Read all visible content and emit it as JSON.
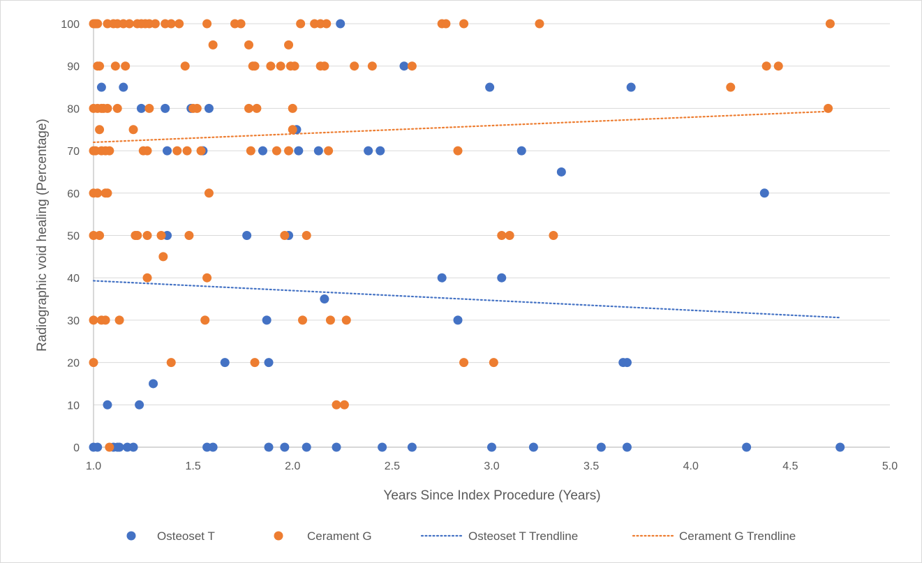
{
  "chart_data": {
    "type": "scatter",
    "xlabel": "Years Since Index Procedure (Years)",
    "ylabel": "Radiographic void healing (Percentage)",
    "xlim": [
      1.0,
      5.0
    ],
    "ylim": [
      0,
      100
    ],
    "x_ticks": [
      "1.0",
      "1.5",
      "2.0",
      "2.5",
      "3.0",
      "3.5",
      "4.0",
      "4.5",
      "5.0"
    ],
    "y_ticks": [
      "0",
      "10",
      "20",
      "30",
      "40",
      "50",
      "60",
      "70",
      "80",
      "90",
      "100"
    ],
    "grid": "horizontal",
    "legend_position": "bottom",
    "colors": {
      "osteoset": "#4472c4",
      "cerament": "#ed7d31",
      "axis": "#bfbfbf",
      "grid": "#d9d9d9"
    },
    "series": [
      {
        "name": "Osteoset T",
        "color": "#4472c4",
        "points": [
          [
            1.0,
            0
          ],
          [
            1.02,
            0
          ],
          [
            1.01,
            100
          ],
          [
            1.04,
            85
          ],
          [
            1.07,
            10
          ],
          [
            1.1,
            0
          ],
          [
            1.12,
            0
          ],
          [
            1.13,
            0
          ],
          [
            1.15,
            85
          ],
          [
            1.17,
            0
          ],
          [
            1.2,
            0
          ],
          [
            1.23,
            10
          ],
          [
            1.24,
            80
          ],
          [
            1.3,
            15
          ],
          [
            1.36,
            80
          ],
          [
            1.37,
            70
          ],
          [
            1.37,
            50
          ],
          [
            1.49,
            80
          ],
          [
            1.55,
            70
          ],
          [
            1.57,
            0
          ],
          [
            1.58,
            80
          ],
          [
            1.6,
            0
          ],
          [
            1.66,
            20
          ],
          [
            1.77,
            50
          ],
          [
            1.85,
            70
          ],
          [
            1.87,
            30
          ],
          [
            1.88,
            20
          ],
          [
            1.88,
            0
          ],
          [
            1.96,
            0
          ],
          [
            1.98,
            50
          ],
          [
            2.02,
            75
          ],
          [
            2.03,
            70
          ],
          [
            2.07,
            0
          ],
          [
            2.13,
            70
          ],
          [
            2.16,
            35
          ],
          [
            2.22,
            0
          ],
          [
            2.24,
            100
          ],
          [
            2.38,
            70
          ],
          [
            2.44,
            70
          ],
          [
            2.45,
            0
          ],
          [
            2.56,
            90
          ],
          [
            2.6,
            0
          ],
          [
            2.75,
            40
          ],
          [
            2.83,
            30
          ],
          [
            2.99,
            85
          ],
          [
            3.0,
            0
          ],
          [
            3.05,
            40
          ],
          [
            3.15,
            70
          ],
          [
            3.21,
            0
          ],
          [
            3.35,
            65
          ],
          [
            3.55,
            0
          ],
          [
            3.66,
            20
          ],
          [
            3.68,
            20
          ],
          [
            3.68,
            0
          ],
          [
            3.7,
            85
          ],
          [
            4.28,
            0
          ],
          [
            4.37,
            60
          ],
          [
            4.75,
            0
          ]
        ]
      },
      {
        "name": "Cerament G",
        "color": "#ed7d31",
        "points": [
          [
            1.0,
            100
          ],
          [
            1.01,
            100
          ],
          [
            1.02,
            100
          ],
          [
            1.0,
            80
          ],
          [
            1.02,
            80
          ],
          [
            1.0,
            70
          ],
          [
            1.0,
            60
          ],
          [
            1.0,
            50
          ],
          [
            1.0,
            30
          ],
          [
            1.0,
            20
          ],
          [
            1.02,
            90
          ],
          [
            1.03,
            90
          ],
          [
            1.02,
            60
          ],
          [
            1.01,
            70
          ],
          [
            1.04,
            80
          ],
          [
            1.03,
            75
          ],
          [
            1.04,
            70
          ],
          [
            1.03,
            50
          ],
          [
            1.04,
            30
          ],
          [
            1.06,
            30
          ],
          [
            1.05,
            80
          ],
          [
            1.06,
            60
          ],
          [
            1.07,
            60
          ],
          [
            1.06,
            70
          ],
          [
            1.07,
            80
          ],
          [
            1.08,
            70
          ],
          [
            1.07,
            100
          ],
          [
            1.08,
            0
          ],
          [
            1.1,
            100
          ],
          [
            1.11,
            90
          ],
          [
            1.12,
            80
          ],
          [
            1.12,
            100
          ],
          [
            1.13,
            30
          ],
          [
            1.15,
            100
          ],
          [
            1.16,
            90
          ],
          [
            1.18,
            100
          ],
          [
            1.2,
            75
          ],
          [
            1.21,
            50
          ],
          [
            1.22,
            50
          ],
          [
            1.22,
            100
          ],
          [
            1.24,
            100
          ],
          [
            1.25,
            70
          ],
          [
            1.26,
            100
          ],
          [
            1.27,
            70
          ],
          [
            1.27,
            40
          ],
          [
            1.27,
            50
          ],
          [
            1.28,
            100
          ],
          [
            1.28,
            80
          ],
          [
            1.31,
            100
          ],
          [
            1.34,
            50
          ],
          [
            1.35,
            45
          ],
          [
            1.36,
            100
          ],
          [
            1.39,
            20
          ],
          [
            1.39,
            100
          ],
          [
            1.42,
            70
          ],
          [
            1.43,
            100
          ],
          [
            1.46,
            90
          ],
          [
            1.47,
            70
          ],
          [
            1.48,
            50
          ],
          [
            1.5,
            80
          ],
          [
            1.52,
            80
          ],
          [
            1.54,
            70
          ],
          [
            1.56,
            30
          ],
          [
            1.57,
            100
          ],
          [
            1.57,
            40
          ],
          [
            1.58,
            60
          ],
          [
            1.6,
            95
          ],
          [
            1.71,
            100
          ],
          [
            1.74,
            100
          ],
          [
            1.78,
            80
          ],
          [
            1.78,
            95
          ],
          [
            1.79,
            70
          ],
          [
            1.8,
            90
          ],
          [
            1.81,
            20
          ],
          [
            1.81,
            90
          ],
          [
            1.82,
            80
          ],
          [
            1.89,
            90
          ],
          [
            1.92,
            70
          ],
          [
            1.94,
            90
          ],
          [
            1.96,
            50
          ],
          [
            1.98,
            70
          ],
          [
            1.98,
            95
          ],
          [
            1.99,
            90
          ],
          [
            2.0,
            80
          ],
          [
            2.0,
            75
          ],
          [
            2.01,
            90
          ],
          [
            2.04,
            100
          ],
          [
            2.05,
            30
          ],
          [
            2.07,
            50
          ],
          [
            2.11,
            100
          ],
          [
            2.14,
            90
          ],
          [
            2.16,
            90
          ],
          [
            2.14,
            100
          ],
          [
            2.17,
            100
          ],
          [
            2.18,
            70
          ],
          [
            2.19,
            30
          ],
          [
            2.22,
            10
          ],
          [
            2.26,
            10
          ],
          [
            2.27,
            30
          ],
          [
            2.31,
            90
          ],
          [
            2.4,
            90
          ],
          [
            2.6,
            90
          ],
          [
            2.75,
            100
          ],
          [
            2.77,
            100
          ],
          [
            2.83,
            70
          ],
          [
            2.86,
            20
          ],
          [
            2.86,
            100
          ],
          [
            3.01,
            20
          ],
          [
            3.05,
            50
          ],
          [
            3.09,
            50
          ],
          [
            3.24,
            100
          ],
          [
            3.31,
            50
          ],
          [
            4.2,
            85
          ],
          [
            4.38,
            90
          ],
          [
            4.44,
            90
          ],
          [
            4.69,
            80
          ],
          [
            4.7,
            100
          ]
        ]
      },
      {
        "name": "Osteoset T Trendline",
        "color": "#4472c4",
        "style": "dotted",
        "points": [
          [
            1.0,
            39.3
          ],
          [
            4.75,
            30.6
          ]
        ]
      },
      {
        "name": "Cerament G Trendline",
        "color": "#ed7d31",
        "style": "dotted",
        "points": [
          [
            1.0,
            72
          ],
          [
            4.7,
            79.3
          ]
        ]
      }
    ]
  }
}
